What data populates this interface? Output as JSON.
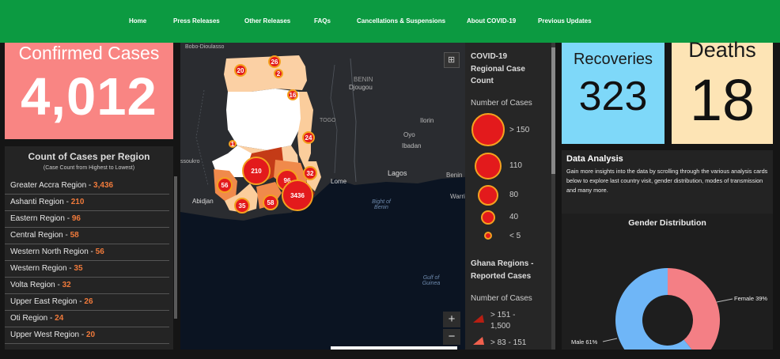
{
  "nav": [
    "Home",
    "Press Releases",
    "Other Releases",
    "FAQs",
    "Cancellations & Suspensions",
    "About COVID-19",
    "Previous Updates"
  ],
  "confirmed": {
    "label": "Confirmed Cases",
    "value": "4,012"
  },
  "recoveries": {
    "label": "Recoveries",
    "value": "323"
  },
  "deaths": {
    "label": "Deaths",
    "value": "18"
  },
  "regions": {
    "title": "Count of Cases per Region",
    "subtitle": "(Case Count from Highest to Lowest)",
    "rows": [
      {
        "name": "Greater Accra Region - ",
        "value": "3,436"
      },
      {
        "name": "Ashanti Region - ",
        "value": "210"
      },
      {
        "name": "Eastern Region - ",
        "value": "96"
      },
      {
        "name": "Central Region - ",
        "value": "58"
      },
      {
        "name": "Western North Region - ",
        "value": "56"
      },
      {
        "name": "Western Region - ",
        "value": "35"
      },
      {
        "name": "Volta Region - ",
        "value": "32"
      },
      {
        "name": "Upper East Region - ",
        "value": "26"
      },
      {
        "name": "Oti Region - ",
        "value": "24"
      },
      {
        "name": "Upper West Region - ",
        "value": "20"
      }
    ]
  },
  "map": {
    "labels": [
      "Bobo-Dioulasso",
      "BENIN",
      "Djougou",
      "TOGO",
      "Ilorin",
      "Oyo",
      "Ibadan",
      "Lagos",
      "Benin",
      "Warri",
      "Lome",
      "Bight of Benin",
      "Abidjan",
      "Gulf of Guinea",
      "ssoukro"
    ],
    "bubbles": [
      "26",
      "20",
      "2",
      "16",
      "1",
      "24",
      "210",
      "96",
      "32",
      "56",
      "3436",
      "35",
      "58"
    ],
    "zoom_in": "+",
    "zoom_out": "−"
  },
  "legend": {
    "title1": "COVID-19",
    "title2": "Regional Case",
    "title3": "Count",
    "number_of_cases": "Number of Cases",
    "sizes": [
      "> 150",
      "110",
      "80",
      "40",
      "< 5"
    ],
    "title4": "Ghana Regions -",
    "title5": "Reported Cases",
    "number_of_cases2": "Number of Cases",
    "ranges": [
      "> 151 -",
      "1,500",
      "> 83 - 151"
    ]
  },
  "analysis": {
    "title": "Data Analysis",
    "text": "Gain more insights into the data by scrolling through the various analysis cards below to explore last country visit, gender distribution, modes of transmission and many more."
  },
  "gender": {
    "title": "Gender Distribution",
    "male_label": "Male 61%",
    "female_label": "Female 39%",
    "male_pct": 61,
    "female_pct": 39,
    "male_color": "#6fb6f7",
    "female_color": "#f47f85"
  }
}
